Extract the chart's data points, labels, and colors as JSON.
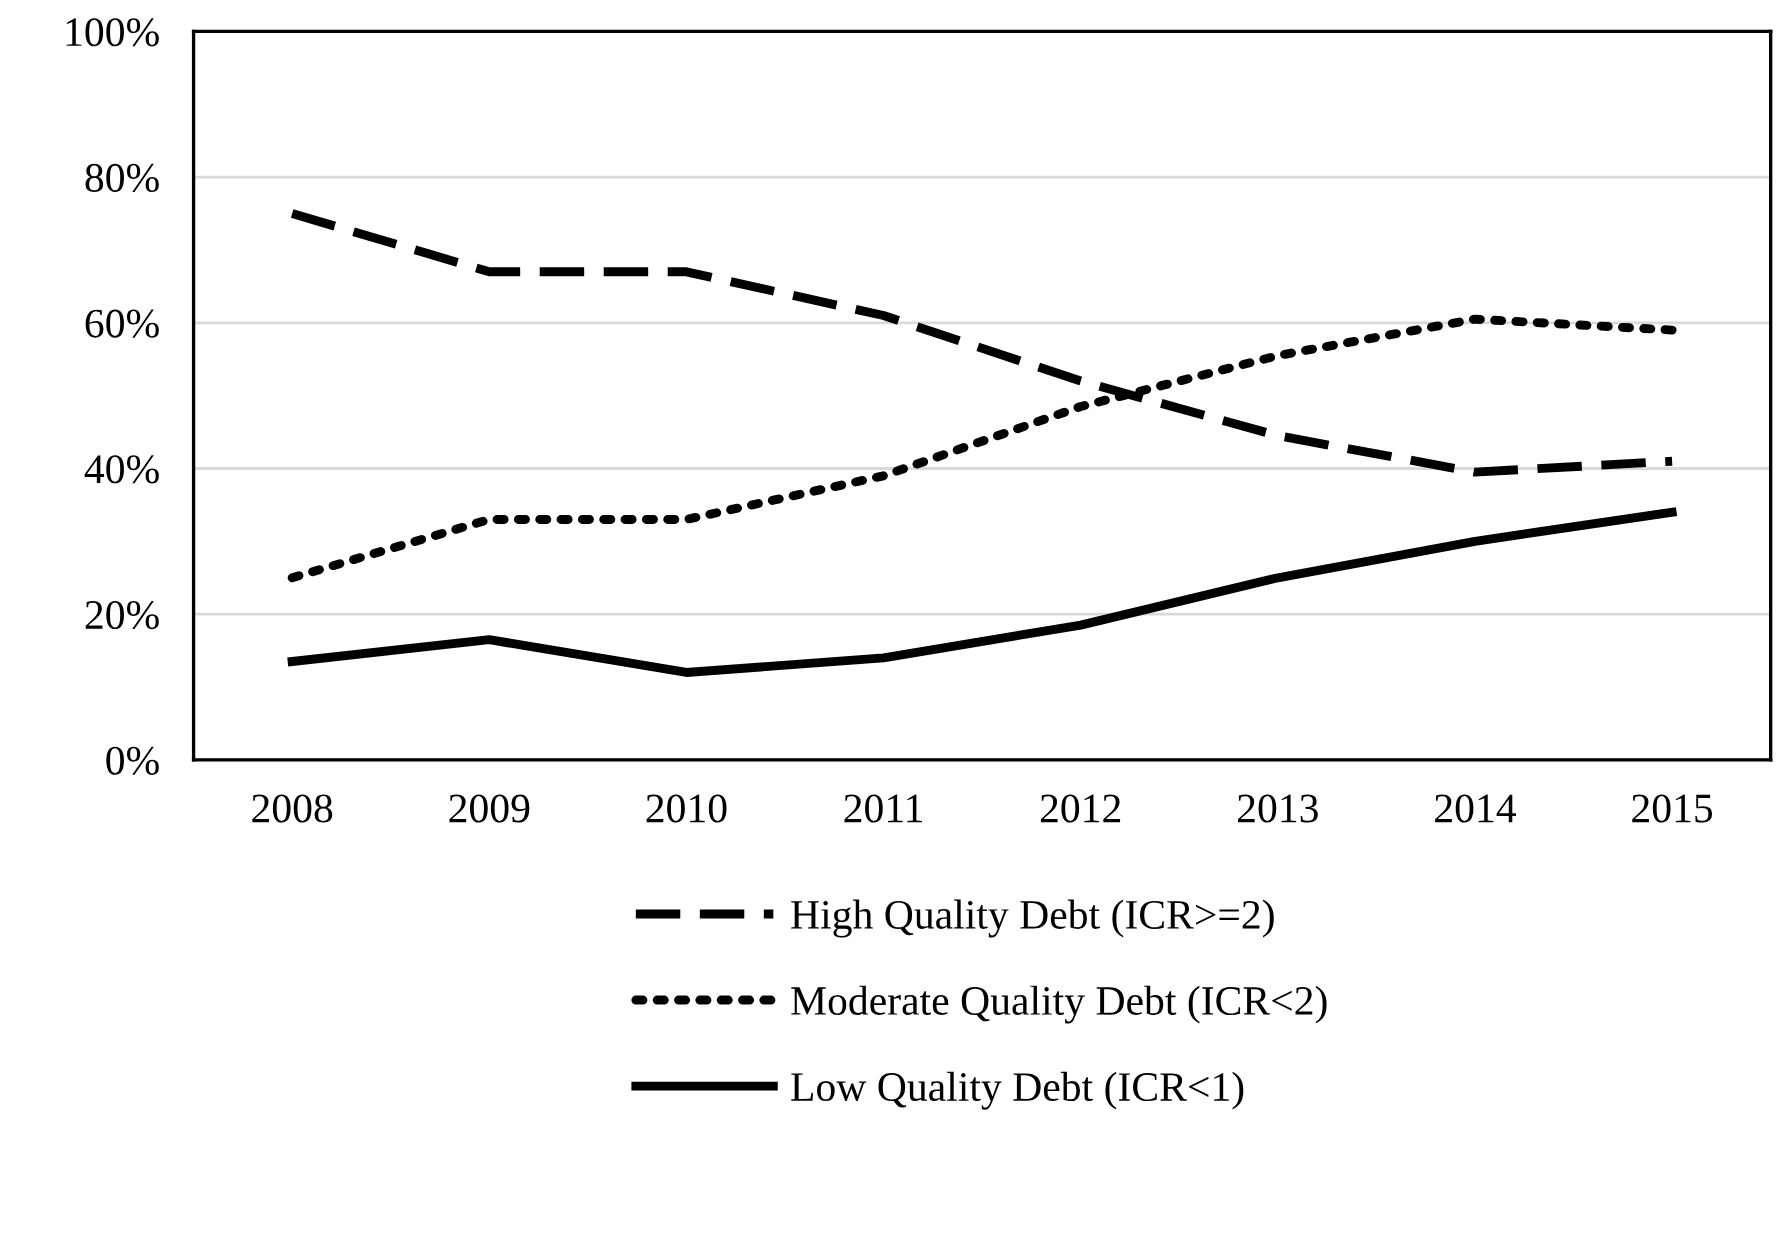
{
  "chart_data": {
    "type": "line",
    "categories": [
      "2008",
      "2009",
      "2010",
      "2011",
      "2012",
      "2013",
      "2014",
      "2015"
    ],
    "series": [
      {
        "name": "High Quality Debt (ICR>=2)",
        "color": "#000000",
        "line_style": "dashed",
        "values": [
          75,
          67,
          67,
          61,
          52,
          44.5,
          39.5,
          41
        ]
      },
      {
        "name": "Moderate Quality Debt (ICR<2)",
        "color": "#000000",
        "line_style": "dotted",
        "values": [
          25,
          33,
          33,
          39,
          48.5,
          55.5,
          60.5,
          59
        ]
      },
      {
        "name": "Low Quality Debt (ICR<1)",
        "color": "#000000",
        "line_style": "solid",
        "values": [
          13.5,
          16.5,
          12,
          14,
          18.5,
          25,
          30,
          34
        ]
      }
    ],
    "ylim": [
      0,
      100
    ],
    "yticks": [
      {
        "value": 0,
        "label": "0%"
      },
      {
        "value": 20,
        "label": "20%"
      },
      {
        "value": 40,
        "label": "40%"
      },
      {
        "value": 60,
        "label": "60%"
      },
      {
        "value": 80,
        "label": "80%"
      },
      {
        "value": 100,
        "label": "100%"
      }
    ],
    "grid": "y",
    "legend": "bottom",
    "marker": "none"
  }
}
